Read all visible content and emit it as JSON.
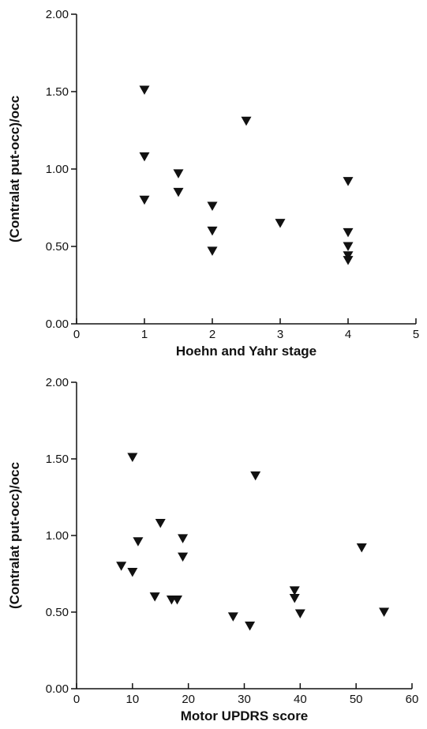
{
  "chart_data": [
    {
      "type": "scatter",
      "title": "",
      "xlabel": "Hoehn and Yahr stage",
      "ylabel": "(Contralat put-occ)/occ",
      "xlim": [
        0,
        5
      ],
      "ylim": [
        0,
        2
      ],
      "x_ticks": [
        0,
        1,
        2,
        3,
        4,
        5
      ],
      "x_tick_labels": [
        "0",
        "1",
        "2",
        "3",
        "4",
        "5"
      ],
      "y_ticks": [
        0,
        0.5,
        1,
        1.5,
        2
      ],
      "y_tick_labels": [
        "0.00",
        "0.50",
        "1.00",
        "1.50",
        "2.00"
      ],
      "grid": false,
      "marker": "filled-down-triangle",
      "points": [
        {
          "x": 1,
          "y": 1.51
        },
        {
          "x": 1,
          "y": 1.08
        },
        {
          "x": 1,
          "y": 0.8
        },
        {
          "x": 1.5,
          "y": 0.97
        },
        {
          "x": 1.5,
          "y": 0.85
        },
        {
          "x": 2,
          "y": 0.76
        },
        {
          "x": 2,
          "y": 0.6
        },
        {
          "x": 2,
          "y": 0.47
        },
        {
          "x": 2.5,
          "y": 1.31
        },
        {
          "x": 3,
          "y": 0.65
        },
        {
          "x": 4,
          "y": 0.92
        },
        {
          "x": 4,
          "y": 0.59
        },
        {
          "x": 4,
          "y": 0.5
        },
        {
          "x": 4,
          "y": 0.44
        },
        {
          "x": 4,
          "y": 0.41
        }
      ]
    },
    {
      "type": "scatter",
      "title": "",
      "xlabel": "Motor UPDRS score",
      "ylabel": "(Contralat put-occ)/occ",
      "xlim": [
        0,
        60
      ],
      "ylim": [
        0,
        2
      ],
      "x_ticks": [
        0,
        10,
        20,
        30,
        40,
        50,
        60
      ],
      "x_tick_labels": [
        "0",
        "10",
        "20",
        "30",
        "40",
        "50",
        "60"
      ],
      "y_ticks": [
        0,
        0.5,
        1,
        1.5,
        2
      ],
      "y_tick_labels": [
        "0.00",
        "0.50",
        "1.00",
        "1.50",
        "2.00"
      ],
      "grid": false,
      "marker": "filled-down-triangle",
      "points": [
        {
          "x": 8,
          "y": 0.8
        },
        {
          "x": 10,
          "y": 1.51
        },
        {
          "x": 10,
          "y": 0.76
        },
        {
          "x": 11,
          "y": 0.96
        },
        {
          "x": 14,
          "y": 0.6
        },
        {
          "x": 15,
          "y": 1.08
        },
        {
          "x": 17,
          "y": 0.58
        },
        {
          "x": 18,
          "y": 0.58
        },
        {
          "x": 19,
          "y": 0.98
        },
        {
          "x": 19,
          "y": 0.86
        },
        {
          "x": 28,
          "y": 0.47
        },
        {
          "x": 31,
          "y": 0.41
        },
        {
          "x": 32,
          "y": 1.39
        },
        {
          "x": 39,
          "y": 0.64
        },
        {
          "x": 39,
          "y": 0.59
        },
        {
          "x": 40,
          "y": 0.49
        },
        {
          "x": 51,
          "y": 0.92
        },
        {
          "x": 55,
          "y": 0.5
        }
      ]
    }
  ]
}
